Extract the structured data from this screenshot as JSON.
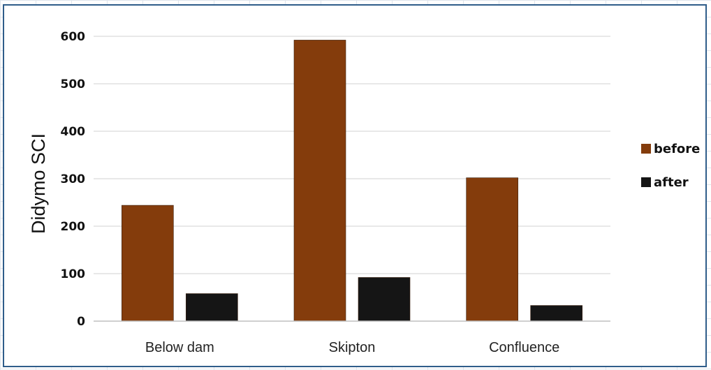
{
  "chart_data": {
    "type": "bar",
    "title": "",
    "xlabel": "",
    "ylabel": "Didymo SCI",
    "categories": [
      "Below dam",
      "Skipton",
      "Confluence"
    ],
    "series": [
      {
        "name": "before",
        "values": [
          244,
          592,
          302
        ],
        "color": "#843c0c"
      },
      {
        "name": "after",
        "values": [
          58,
          92,
          33
        ],
        "color": "#151515"
      }
    ],
    "ylim": [
      0,
      600
    ],
    "yticks": [
      "0",
      "100",
      "200",
      "300",
      "400",
      "500",
      "600"
    ],
    "grid": true,
    "legend_position": "right"
  }
}
